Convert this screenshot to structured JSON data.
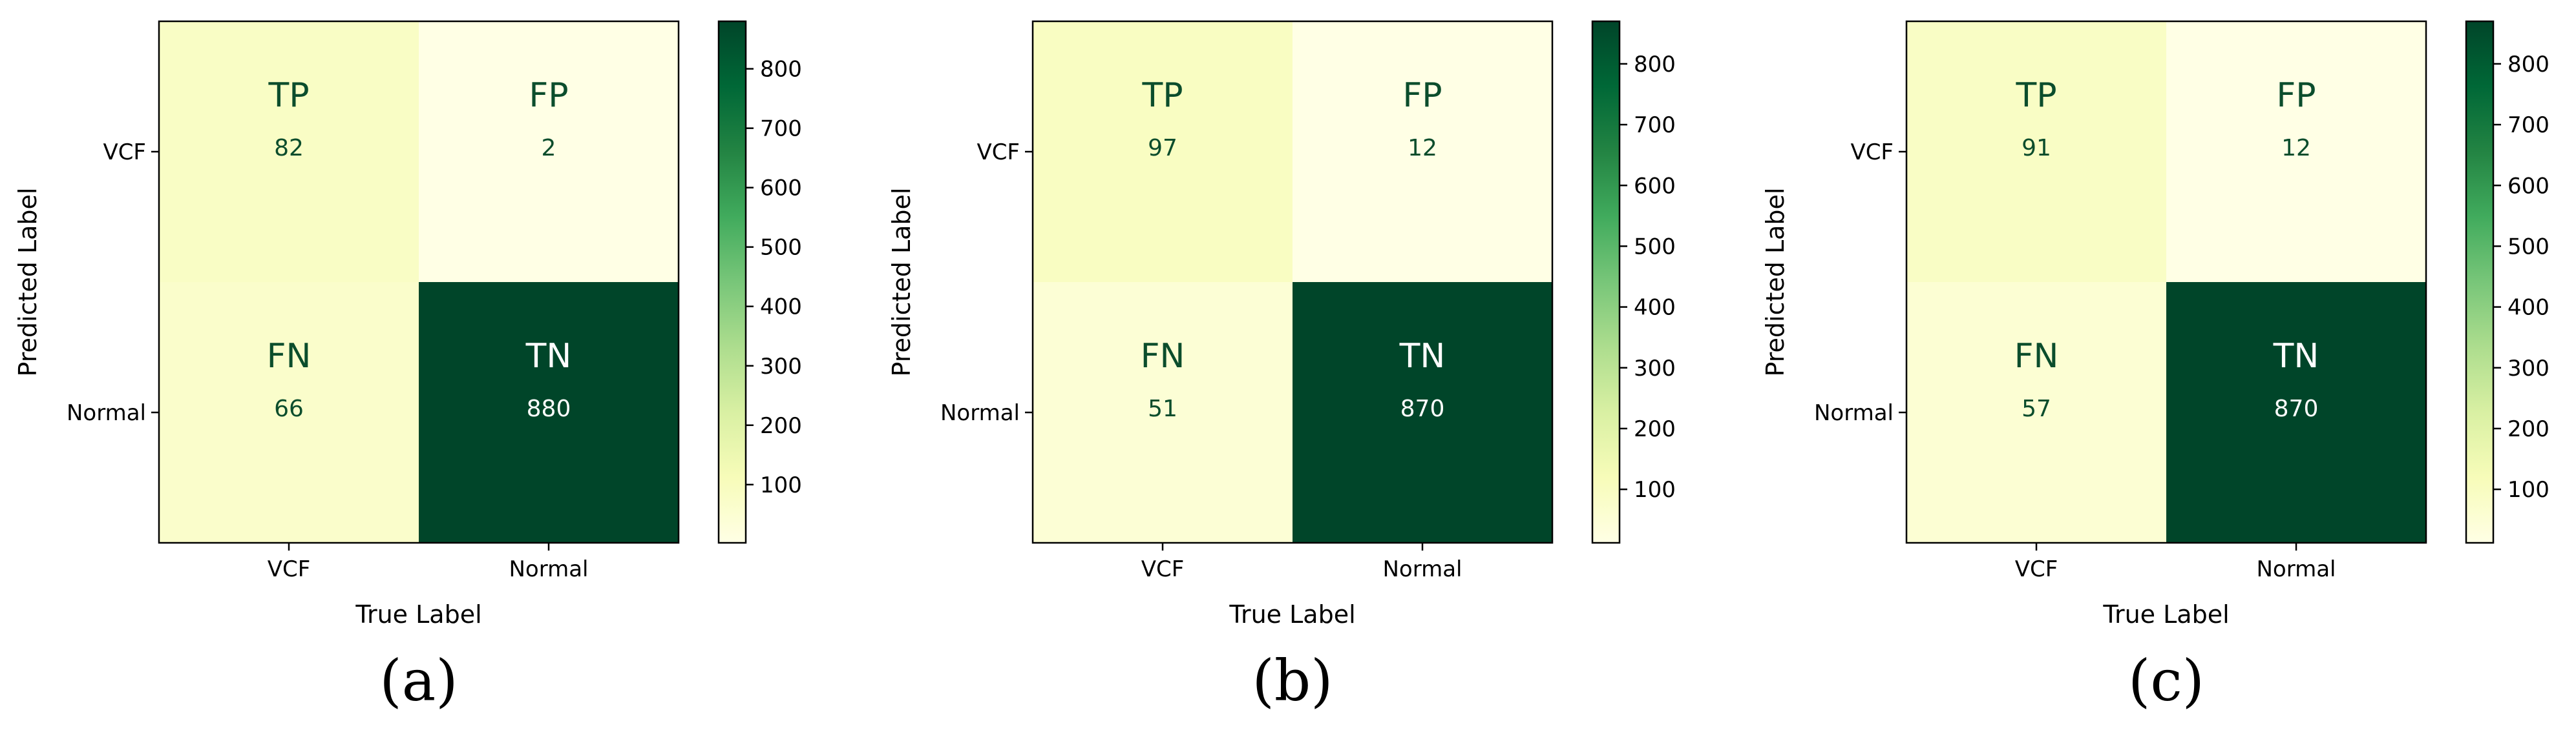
{
  "chart_data": [
    {
      "type": "heatmap",
      "caption": "(a)",
      "xlabel": "True Label",
      "ylabel": "Predicted  Label",
      "x_categories": [
        "VCF",
        "Normal"
      ],
      "y_categories": [
        "VCF",
        "Normal"
      ],
      "cells": [
        [
          {
            "label": "TP",
            "value": 82
          },
          {
            "label": "FP",
            "value": 2
          }
        ],
        [
          {
            "label": "FN",
            "value": 66
          },
          {
            "label": "TN",
            "value": 880
          }
        ]
      ],
      "colorbar": {
        "min": 2,
        "max": 880,
        "ticks": [
          100,
          200,
          300,
          400,
          500,
          600,
          700,
          800
        ]
      },
      "colormap": "YlGn"
    },
    {
      "type": "heatmap",
      "caption": "(b)",
      "xlabel": "True Label",
      "ylabel": "Predicted  Label",
      "x_categories": [
        "VCF",
        "Normal"
      ],
      "y_categories": [
        "VCF",
        "Normal"
      ],
      "cells": [
        [
          {
            "label": "TP",
            "value": 97
          },
          {
            "label": "FP",
            "value": 12
          }
        ],
        [
          {
            "label": "FN",
            "value": 51
          },
          {
            "label": "TN",
            "value": 870
          }
        ]
      ],
      "colorbar": {
        "min": 12,
        "max": 870,
        "ticks": [
          100,
          200,
          300,
          400,
          500,
          600,
          700,
          800
        ]
      },
      "colormap": "YlGn"
    },
    {
      "type": "heatmap",
      "caption": "(c)",
      "xlabel": "True Label",
      "ylabel": "Predicted  Label",
      "x_categories": [
        "VCF",
        "Normal"
      ],
      "y_categories": [
        "VCF",
        "Normal"
      ],
      "cells": [
        [
          {
            "label": "TP",
            "value": 91
          },
          {
            "label": "FP",
            "value": 12
          }
        ],
        [
          {
            "label": "FN",
            "value": 57
          },
          {
            "label": "TN",
            "value": 870
          }
        ]
      ],
      "colorbar": {
        "min": 12,
        "max": 870,
        "ticks": [
          100,
          200,
          300,
          400,
          500,
          600,
          700,
          800
        ]
      },
      "colormap": "YlGn"
    }
  ],
  "colors": {
    "text_on_light": "#0b4d2c",
    "text_on_dark": "#ffffff",
    "frame": "#000000"
  }
}
